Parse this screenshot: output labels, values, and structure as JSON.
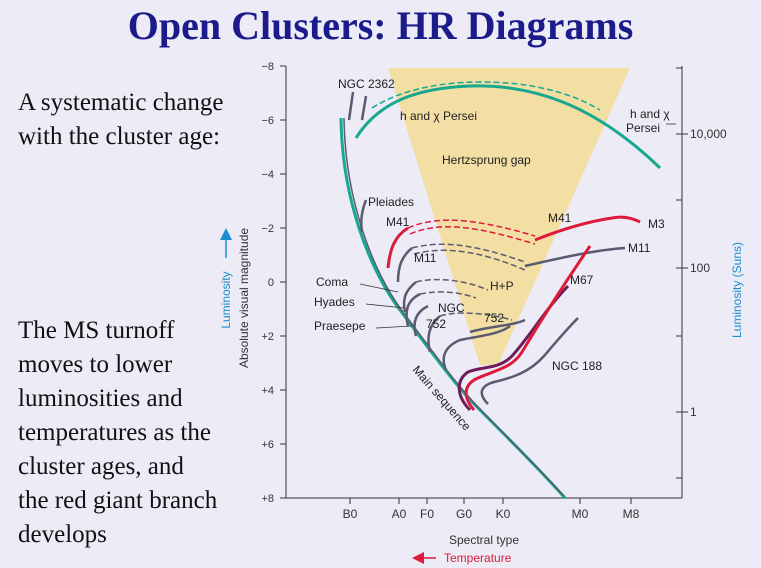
{
  "slide": {
    "title": "Open Clusters: HR Diagrams",
    "text_top": [
      "A systematic change",
      "with the cluster age:"
    ],
    "text_bottom": [
      "The MS turnoff",
      "moves to lower",
      "luminosities and",
      "temperatures as the",
      "cluster ages, and",
      "the red giant branch",
      "develops"
    ]
  },
  "diagram": {
    "left_axis": {
      "title": "Absolute visual magnitude",
      "ticks": [
        "−8",
        "−6",
        "−4",
        "−2",
        "0",
        "+2",
        "+4",
        "+6",
        "+8"
      ],
      "arrow_label": "Luminosity"
    },
    "right_axis": {
      "title": "Luminosity (Suns)",
      "ticks": [
        "10,000",
        "100",
        "1"
      ]
    },
    "bottom_axis": {
      "ticks": [
        "B0",
        "A0",
        "F0",
        "G0",
        "K0",
        "M0",
        "M8"
      ],
      "title": "Spectral type",
      "arrow_label": "Temperature"
    },
    "labels": {
      "ngc2362": "NGC 2362",
      "hchi_inner": "h and χ Persei",
      "hchi_right_1": "h and χ",
      "hchi_right_2": "Persei",
      "gap": "Hertzsprung gap",
      "pleiades": "Pleiades",
      "m41_left": "M41",
      "m41_right": "M41",
      "m3": "M3",
      "m11_left": "M11",
      "m11_right": "M11",
      "coma": "Coma",
      "hyades": "Hyades",
      "praesepe": "Praesepe",
      "ngc752_a1": "NGC",
      "ngc752_a2": "752",
      "ngc752_b": "752",
      "hp": "H+P",
      "m67": "M67",
      "ngc188": "NGC 188",
      "main_sequence": "Main sequence"
    },
    "colors": {
      "background": "#ecebf6",
      "title": "#1b1b8c",
      "gap_fill": "#f3dfa4",
      "teal": "#17a88f",
      "red": "#dd1a3a",
      "gray": "#5a5a70",
      "purple": "#6e1d5a",
      "blue_axis": "#1a8fd0"
    }
  }
}
